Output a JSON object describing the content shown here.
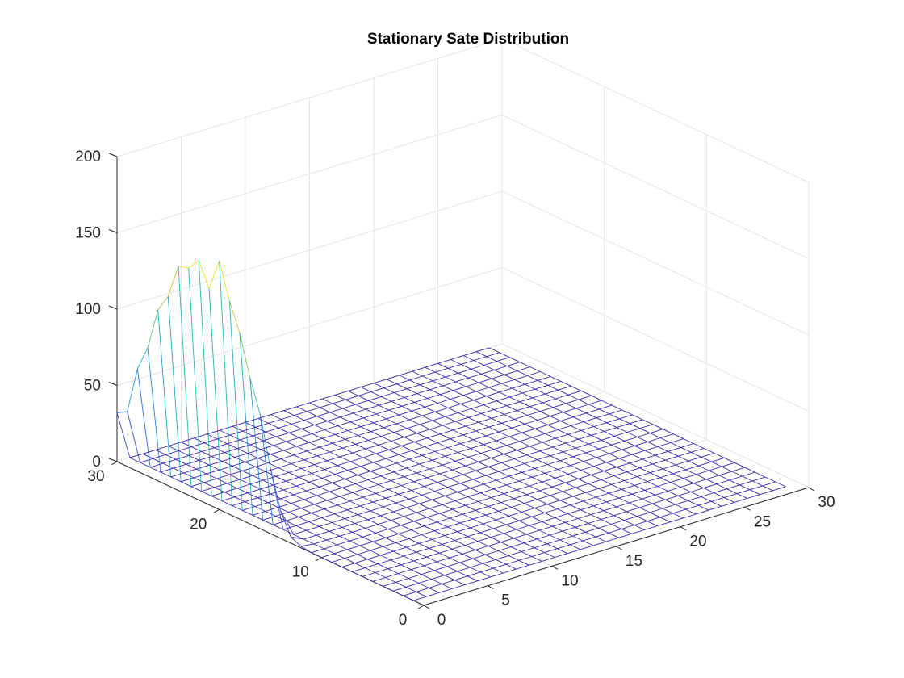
{
  "chart_data": {
    "type": "mesh",
    "title": "Stationary Sate Distribution",
    "xlabel": "",
    "ylabel": "",
    "zlabel": "",
    "x_axis": {
      "range": [
        0,
        30
      ],
      "ticks": [
        0,
        5,
        10,
        15,
        20,
        25,
        30
      ]
    },
    "y_axis": {
      "range": [
        0,
        30
      ],
      "ticks": [
        0,
        10,
        20,
        30
      ]
    },
    "z_axis": {
      "range": [
        0,
        200
      ],
      "ticks": [
        0,
        50,
        100,
        150,
        200
      ]
    },
    "grid": true,
    "colormap": "parula",
    "mesh_size": [
      30,
      30
    ],
    "edge_x_index": 0,
    "edge_profile": {
      "y": [
        30,
        29,
        28,
        27,
        26,
        25,
        24,
        23,
        22,
        21,
        20,
        19,
        18,
        17,
        16,
        15,
        14,
        13,
        12,
        11,
        10,
        9,
        8,
        7,
        6,
        5,
        4,
        3,
        2,
        1
      ],
      "z": [
        32,
        36,
        67,
        84,
        112,
        124,
        147,
        149,
        157,
        142,
        163,
        140,
        122,
        96,
        75,
        43,
        18,
        4,
        1,
        0,
        0,
        0,
        0,
        0,
        0,
        0,
        0,
        0,
        0,
        0
      ]
    },
    "rest_of_surface_z": 0,
    "colors": {
      "axes": "#262626",
      "grid": "#e5e5e5",
      "low": "#3e26a8",
      "high": "#f9fb0e"
    }
  }
}
